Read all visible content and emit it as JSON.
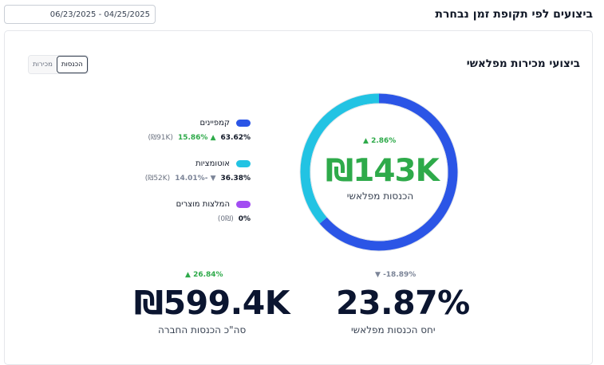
{
  "header": {
    "title": "ביצועים לפי תקופת זמן נבחרת",
    "date_range": "06/23/2025 - 04/25/2025"
  },
  "card": {
    "title": "ביצועי מכירות מפלאשי",
    "toggle": {
      "revenue": "הכנסות",
      "sales": "מכירות",
      "selected": "revenue"
    }
  },
  "legend": [
    {
      "name": "קמפיינים",
      "color": "#2b55e6",
      "pct": "63.62%",
      "delta": "15.86%",
      "delta_dir": "up",
      "amount": "(91K₪)"
    },
    {
      "name": "אוטומציות",
      "color": "#22c3e3",
      "pct": "36.38%",
      "delta": "-14.01%",
      "delta_dir": "down",
      "amount": "(52K₪)"
    },
    {
      "name": "המלצות מוצרים",
      "color": "#a24df2",
      "pct": "0%",
      "delta": "",
      "delta_dir": "",
      "amount": "(0₪)"
    }
  ],
  "donut": {
    "center_value": "₪143K",
    "center_label": "הכנסות מפלאשי",
    "center_delta": "2.86%",
    "center_delta_dir": "up",
    "slices": [
      {
        "name": "קמפיינים",
        "fraction": 0.6362,
        "color": "#2b55e6"
      },
      {
        "name": "אוטומציות",
        "fraction": 0.3638,
        "color": "#22c3e3"
      },
      {
        "name": "המלצות מוצרים",
        "fraction": 0,
        "color": "#a24df2"
      }
    ]
  },
  "kpis": {
    "total": {
      "delta": "26.84%",
      "delta_dir": "up",
      "value": "₪599.4K",
      "label": "סה\"כ הכנסות החברה"
    },
    "ratio": {
      "delta": "-18.89%",
      "delta_dir": "down",
      "value": "23.87%",
      "label": "יחס הכנסות מפלאשי"
    }
  }
}
